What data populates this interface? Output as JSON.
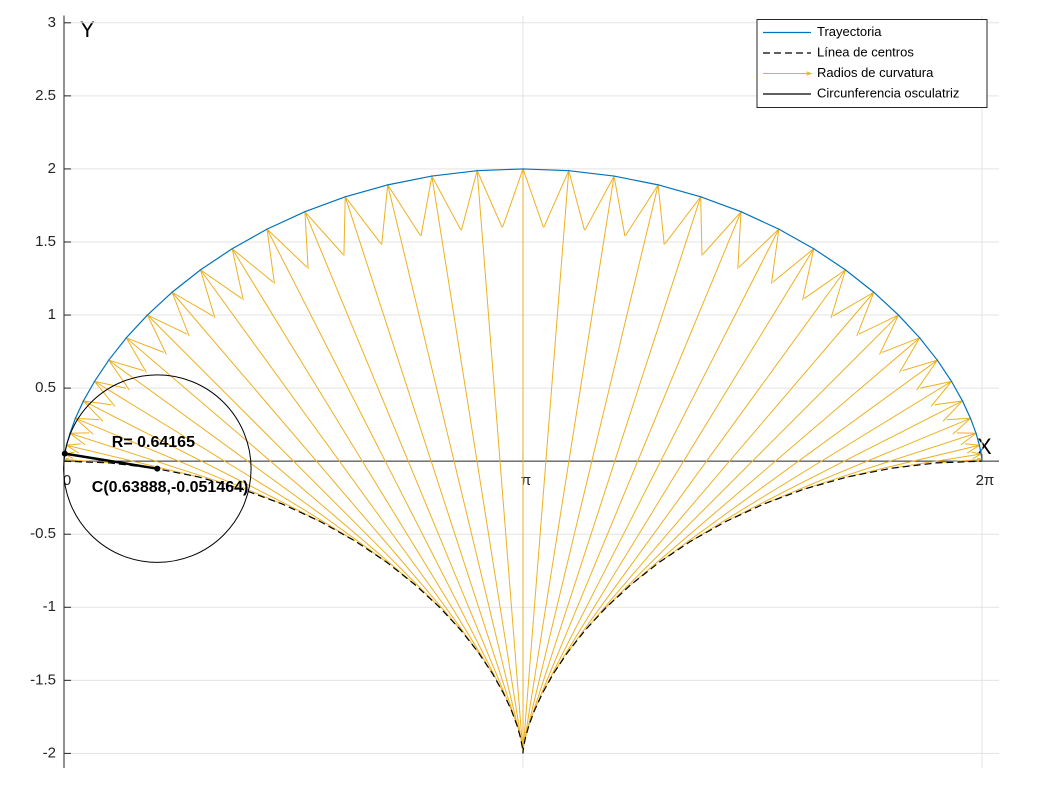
{
  "chart_data": {
    "type": "line",
    "x_axis_label": "X",
    "y_axis_label": "Y",
    "xlim": [
      0,
      6.4
    ],
    "ylim": [
      -2.1,
      3.05
    ],
    "xticks": [
      {
        "value": 0,
        "label": "0"
      },
      {
        "value": 3.1416,
        "label": "π"
      },
      {
        "value": 6.2832,
        "label": "2π"
      }
    ],
    "yticks": [
      -2,
      -1.5,
      -1,
      -0.5,
      0.5,
      1,
      1.5,
      2,
      2.5,
      3
    ],
    "grid": true,
    "legend": "northeast",
    "series": [
      {
        "name": "Trayectoria",
        "color": "#0072BD",
        "style": "line",
        "x": [
          0,
          0.001,
          0.005,
          0.017,
          0.041,
          0.078,
          0.133,
          0.209,
          0.306,
          0.426,
          0.571,
          0.74,
          0.934,
          1.151,
          1.39,
          1.649,
          1.925,
          2.216,
          2.518,
          2.828,
          3.142,
          3.455,
          3.765,
          4.067,
          4.358,
          4.634,
          4.893,
          5.132,
          5.349,
          5.543,
          5.712,
          5.857,
          5.978,
          6.075,
          6.15,
          6.205,
          6.243,
          6.266,
          6.278,
          6.283,
          6.283
        ],
        "values": [
          0,
          0.012,
          0.049,
          0.109,
          0.191,
          0.293,
          0.412,
          0.546,
          0.691,
          0.844,
          1,
          1.156,
          1.309,
          1.454,
          1.588,
          1.707,
          1.809,
          1.891,
          1.951,
          1.988,
          2,
          1.988,
          1.951,
          1.891,
          1.809,
          1.707,
          1.588,
          1.454,
          1.309,
          1.156,
          1,
          0.844,
          0.691,
          0.546,
          0.412,
          0.293,
          0.191,
          0.109,
          0.049,
          0.012,
          0
        ]
      },
      {
        "name": "Línea de centros",
        "color": "#000000",
        "style": "dashed",
        "x": [
          0,
          0.313,
          0.623,
          0.925,
          1.216,
          1.493,
          1.752,
          1.991,
          2.208,
          2.401,
          2.571,
          2.716,
          2.836,
          2.933,
          3.008,
          3.063,
          3.101,
          3.124,
          3.136,
          3.141,
          3.142,
          3.142,
          3.147,
          3.159,
          3.182,
          3.22,
          3.275,
          3.35,
          3.447,
          3.568,
          3.712,
          3.882,
          4.076,
          4.293,
          4.532,
          4.791,
          5.067,
          5.358,
          5.66,
          5.97,
          6.283
        ],
        "values": [
          0,
          -0.012,
          -0.049,
          -0.109,
          -0.191,
          -0.293,
          -0.412,
          -0.546,
          -0.691,
          -0.844,
          -1,
          -1.156,
          -1.309,
          -1.454,
          -1.588,
          -1.707,
          -1.809,
          -1.891,
          -1.951,
          -1.988,
          -2,
          -1.988,
          -1.951,
          -1.891,
          -1.809,
          -1.707,
          -1.588,
          -1.454,
          -1.309,
          -1.156,
          -1,
          -0.844,
          -0.691,
          -0.546,
          -0.412,
          -0.293,
          -0.191,
          -0.109,
          -0.049,
          -0.012,
          0
        ]
      },
      {
        "name": "Radios de curvatura",
        "color": "#EDB120",
        "style": "arrows"
      },
      {
        "name": "Circunferencia osculatriz",
        "color": "#000000",
        "style": "circle",
        "center": [
          0.63888,
          -0.051464
        ],
        "radius": 0.64165,
        "point": [
          0.0055,
          0.051464
        ],
        "radius_label": "R= 0.64165",
        "center_label": "C(0.63888,-0.051464)"
      }
    ]
  }
}
